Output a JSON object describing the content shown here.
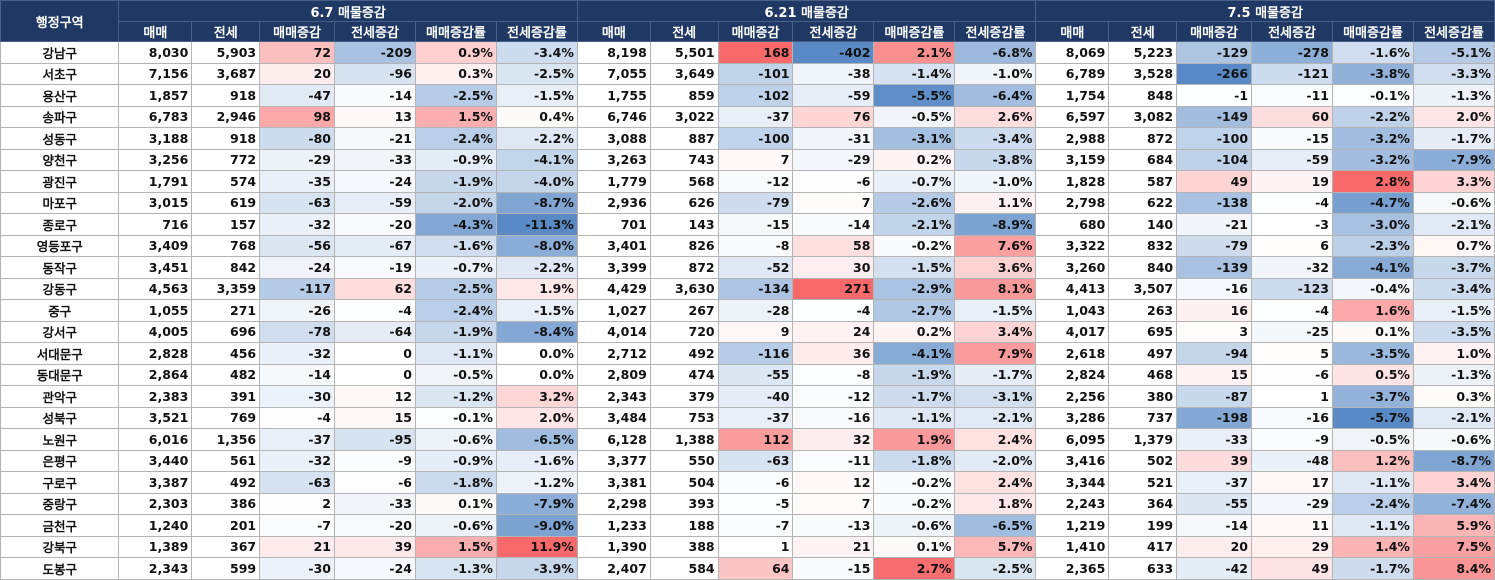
{
  "header": {
    "region": "행정구역",
    "periods": [
      "6.7 매물증감",
      "6.21 매물증감",
      "7.5 매물증감"
    ],
    "columns": [
      "매매",
      "전세",
      "매매증감",
      "전세증감",
      "매매증감률",
      "전세증감률"
    ]
  },
  "colors": {
    "header_bg": "#1f3864",
    "positive": "#f8696b",
    "negative": "#5a8ac6",
    "neutral": "#ffffff"
  },
  "rows": [
    {
      "region": "강남구",
      "values": [
        [
          "8,030",
          "5,903",
          "72",
          "-209",
          "0.9%",
          "-3.4%"
        ],
        [
          "8,198",
          "5,501",
          "168",
          "-402",
          "2.1%",
          "-6.8%"
        ],
        [
          "8,069",
          "5,223",
          "-129",
          "-278",
          "-1.6%",
          "-5.1%"
        ]
      ]
    },
    {
      "region": "서초구",
      "values": [
        [
          "7,156",
          "3,687",
          "20",
          "-96",
          "0.3%",
          "-2.5%"
        ],
        [
          "7,055",
          "3,649",
          "-101",
          "-38",
          "-1.4%",
          "-1.0%"
        ],
        [
          "6,789",
          "3,528",
          "-266",
          "-121",
          "-3.8%",
          "-3.3%"
        ]
      ]
    },
    {
      "region": "용산구",
      "values": [
        [
          "1,857",
          "918",
          "-47",
          "-14",
          "-2.5%",
          "-1.5%"
        ],
        [
          "1,755",
          "859",
          "-102",
          "-59",
          "-5.5%",
          "-6.4%"
        ],
        [
          "1,754",
          "848",
          "-1",
          "-11",
          "-0.1%",
          "-1.3%"
        ]
      ]
    },
    {
      "region": "송파구",
      "values": [
        [
          "6,783",
          "2,946",
          "98",
          "13",
          "1.5%",
          "0.4%"
        ],
        [
          "6,746",
          "3,022",
          "-37",
          "76",
          "-0.5%",
          "2.6%"
        ],
        [
          "6,597",
          "3,082",
          "-149",
          "60",
          "-2.2%",
          "2.0%"
        ]
      ]
    },
    {
      "region": "성동구",
      "values": [
        [
          "3,188",
          "918",
          "-80",
          "-21",
          "-2.4%",
          "-2.2%"
        ],
        [
          "3,088",
          "887",
          "-100",
          "-31",
          "-3.1%",
          "-3.4%"
        ],
        [
          "2,988",
          "872",
          "-100",
          "-15",
          "-3.2%",
          "-1.7%"
        ]
      ]
    },
    {
      "region": "양천구",
      "values": [
        [
          "3,256",
          "772",
          "-29",
          "-33",
          "-0.9%",
          "-4.1%"
        ],
        [
          "3,263",
          "743",
          "7",
          "-29",
          "0.2%",
          "-3.8%"
        ],
        [
          "3,159",
          "684",
          "-104",
          "-59",
          "-3.2%",
          "-7.9%"
        ]
      ]
    },
    {
      "region": "광진구",
      "values": [
        [
          "1,791",
          "574",
          "-35",
          "-24",
          "-1.9%",
          "-4.0%"
        ],
        [
          "1,779",
          "568",
          "-12",
          "-6",
          "-0.7%",
          "-1.0%"
        ],
        [
          "1,828",
          "587",
          "49",
          "19",
          "2.8%",
          "3.3%"
        ]
      ]
    },
    {
      "region": "마포구",
      "values": [
        [
          "3,015",
          "619",
          "-63",
          "-59",
          "-2.0%",
          "-8.7%"
        ],
        [
          "2,936",
          "626",
          "-79",
          "7",
          "-2.6%",
          "1.1%"
        ],
        [
          "2,798",
          "622",
          "-138",
          "-4",
          "-4.7%",
          "-0.6%"
        ]
      ]
    },
    {
      "region": "종로구",
      "values": [
        [
          "716",
          "157",
          "-32",
          "-20",
          "-4.3%",
          "-11.3%"
        ],
        [
          "701",
          "143",
          "-15",
          "-14",
          "-2.1%",
          "-8.9%"
        ],
        [
          "680",
          "140",
          "-21",
          "-3",
          "-3.0%",
          "-2.1%"
        ]
      ]
    },
    {
      "region": "영등포구",
      "values": [
        [
          "3,409",
          "768",
          "-56",
          "-67",
          "-1.6%",
          "-8.0%"
        ],
        [
          "3,401",
          "826",
          "-8",
          "58",
          "-0.2%",
          "7.6%"
        ],
        [
          "3,322",
          "832",
          "-79",
          "6",
          "-2.3%",
          "0.7%"
        ]
      ]
    },
    {
      "region": "동작구",
      "values": [
        [
          "3,451",
          "842",
          "-24",
          "-19",
          "-0.7%",
          "-2.2%"
        ],
        [
          "3,399",
          "872",
          "-52",
          "30",
          "-1.5%",
          "3.6%"
        ],
        [
          "3,260",
          "840",
          "-139",
          "-32",
          "-4.1%",
          "-3.7%"
        ]
      ]
    },
    {
      "region": "강동구",
      "values": [
        [
          "4,563",
          "3,359",
          "-117",
          "62",
          "-2.5%",
          "1.9%"
        ],
        [
          "4,429",
          "3,630",
          "-134",
          "271",
          "-2.9%",
          "8.1%"
        ],
        [
          "4,413",
          "3,507",
          "-16",
          "-123",
          "-0.4%",
          "-3.4%"
        ]
      ]
    },
    {
      "region": "중구",
      "values": [
        [
          "1,055",
          "271",
          "-26",
          "-4",
          "-2.4%",
          "-1.5%"
        ],
        [
          "1,027",
          "267",
          "-28",
          "-4",
          "-2.7%",
          "-1.5%"
        ],
        [
          "1,043",
          "263",
          "16",
          "-4",
          "1.6%",
          "-1.5%"
        ]
      ]
    },
    {
      "region": "강서구",
      "values": [
        [
          "4,005",
          "696",
          "-78",
          "-64",
          "-1.9%",
          "-8.4%"
        ],
        [
          "4,014",
          "720",
          "9",
          "24",
          "0.2%",
          "3.4%"
        ],
        [
          "4,017",
          "695",
          "3",
          "-25",
          "0.1%",
          "-3.5%"
        ]
      ]
    },
    {
      "region": "서대문구",
      "values": [
        [
          "2,828",
          "456",
          "-32",
          "0",
          "-1.1%",
          "0.0%"
        ],
        [
          "2,712",
          "492",
          "-116",
          "36",
          "-4.1%",
          "7.9%"
        ],
        [
          "2,618",
          "497",
          "-94",
          "5",
          "-3.5%",
          "1.0%"
        ]
      ]
    },
    {
      "region": "동대문구",
      "values": [
        [
          "2,864",
          "482",
          "-14",
          "0",
          "-0.5%",
          "0.0%"
        ],
        [
          "2,809",
          "474",
          "-55",
          "-8",
          "-1.9%",
          "-1.7%"
        ],
        [
          "2,824",
          "468",
          "15",
          "-6",
          "0.5%",
          "-1.3%"
        ]
      ]
    },
    {
      "region": "관악구",
      "values": [
        [
          "2,383",
          "391",
          "-30",
          "12",
          "-1.2%",
          "3.2%"
        ],
        [
          "2,343",
          "379",
          "-40",
          "-12",
          "-1.7%",
          "-3.1%"
        ],
        [
          "2,256",
          "380",
          "-87",
          "1",
          "-3.7%",
          "0.3%"
        ]
      ]
    },
    {
      "region": "성북구",
      "values": [
        [
          "3,521",
          "769",
          "-4",
          "15",
          "-0.1%",
          "2.0%"
        ],
        [
          "3,484",
          "753",
          "-37",
          "-16",
          "-1.1%",
          "-2.1%"
        ],
        [
          "3,286",
          "737",
          "-198",
          "-16",
          "-5.7%",
          "-2.1%"
        ]
      ]
    },
    {
      "region": "노원구",
      "values": [
        [
          "6,016",
          "1,356",
          "-37",
          "-95",
          "-0.6%",
          "-6.5%"
        ],
        [
          "6,128",
          "1,388",
          "112",
          "32",
          "1.9%",
          "2.4%"
        ],
        [
          "6,095",
          "1,379",
          "-33",
          "-9",
          "-0.5%",
          "-0.6%"
        ]
      ]
    },
    {
      "region": "은평구",
      "values": [
        [
          "3,440",
          "561",
          "-32",
          "-9",
          "-0.9%",
          "-1.6%"
        ],
        [
          "3,377",
          "550",
          "-63",
          "-11",
          "-1.8%",
          "-2.0%"
        ],
        [
          "3,416",
          "502",
          "39",
          "-48",
          "1.2%",
          "-8.7%"
        ]
      ]
    },
    {
      "region": "구로구",
      "values": [
        [
          "3,387",
          "492",
          "-63",
          "-6",
          "-1.8%",
          "-1.2%"
        ],
        [
          "3,381",
          "504",
          "-6",
          "12",
          "-0.2%",
          "2.4%"
        ],
        [
          "3,344",
          "521",
          "-37",
          "17",
          "-1.1%",
          "3.4%"
        ]
      ]
    },
    {
      "region": "중랑구",
      "values": [
        [
          "2,303",
          "386",
          "2",
          "-33",
          "0.1%",
          "-7.9%"
        ],
        [
          "2,298",
          "393",
          "-5",
          "7",
          "-0.2%",
          "1.8%"
        ],
        [
          "2,243",
          "364",
          "-55",
          "-29",
          "-2.4%",
          "-7.4%"
        ]
      ]
    },
    {
      "region": "금천구",
      "values": [
        [
          "1,240",
          "201",
          "-7",
          "-20",
          "-0.6%",
          "-9.0%"
        ],
        [
          "1,233",
          "188",
          "-7",
          "-13",
          "-0.6%",
          "-6.5%"
        ],
        [
          "1,219",
          "199",
          "-14",
          "11",
          "-1.1%",
          "5.9%"
        ]
      ]
    },
    {
      "region": "강북구",
      "values": [
        [
          "1,389",
          "367",
          "21",
          "39",
          "1.5%",
          "11.9%"
        ],
        [
          "1,390",
          "388",
          "1",
          "21",
          "0.1%",
          "5.7%"
        ],
        [
          "1,410",
          "417",
          "20",
          "29",
          "1.4%",
          "7.5%"
        ]
      ]
    },
    {
      "region": "도봉구",
      "values": [
        [
          "2,343",
          "599",
          "-30",
          "-24",
          "-1.3%",
          "-3.9%"
        ],
        [
          "2,407",
          "584",
          "64",
          "-15",
          "2.7%",
          "-2.5%"
        ],
        [
          "2,365",
          "633",
          "-42",
          "49",
          "-1.7%",
          "8.4%"
        ]
      ]
    }
  ]
}
